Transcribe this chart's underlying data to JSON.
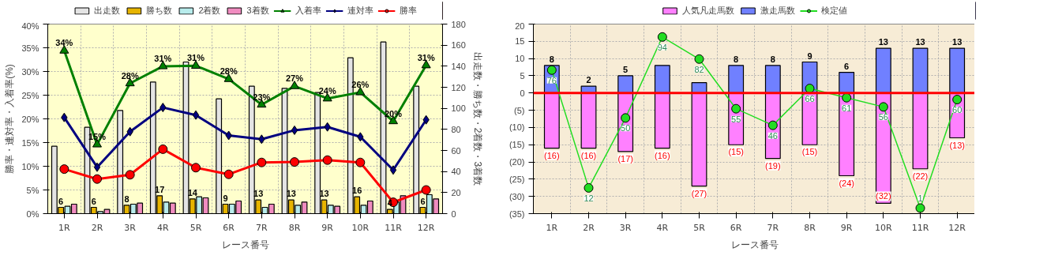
{
  "chart_data": [
    {
      "type": "bar",
      "categories": [
        "1R",
        "2R",
        "3R",
        "4R",
        "5R",
        "6R",
        "7R",
        "8R",
        "9R",
        "10R",
        "11R",
        "12R"
      ],
      "xlabel": "レース番号",
      "ylabel": "勝率・連対率・入着率(%)",
      "y2label": "出走数・勝ち数・2着数・3着数",
      "ylim": [
        0,
        40
      ],
      "yticks": [
        {
          "value": 0,
          "label": "0%"
        },
        {
          "value": 5,
          "label": "5%"
        },
        {
          "value": 10,
          "label": "10%"
        },
        {
          "value": 15,
          "label": "15%"
        },
        {
          "value": 20,
          "label": "20%"
        },
        {
          "value": 25,
          "label": "25%"
        },
        {
          "value": 30,
          "label": "30%"
        },
        {
          "value": 35,
          "label": "35%"
        },
        {
          "value": 40,
          "label": "40%"
        }
      ],
      "y2lim": [
        0,
        180
      ],
      "y2ticks": [
        0,
        20,
        40,
        60,
        80,
        100,
        120,
        140,
        160,
        180
      ],
      "grid": true,
      "legend": "top",
      "series": [
        {
          "name": "出走数",
          "type": "bar",
          "axis": "y2",
          "color": "#e4e4e4",
          "values": [
            64,
            82,
            98,
            125,
            144,
            109,
            121,
            119,
            115,
            148,
            163,
            121
          ]
        },
        {
          "name": "勝ち数",
          "type": "bar",
          "axis": "y2",
          "color": "#e6b400",
          "data_labels": true,
          "values": [
            6,
            6,
            8,
            17,
            14,
            9,
            13,
            13,
            13,
            16,
            4,
            6
          ]
        },
        {
          "name": "2着数",
          "type": "bar",
          "axis": "y2",
          "color": "#b8ecec",
          "values": [
            7,
            2,
            9,
            11,
            16,
            9,
            6,
            8,
            8,
            8,
            11,
            18
          ]
        },
        {
          "name": "3着数",
          "type": "bar",
          "axis": "y2",
          "color": "#f08cc0",
          "values": [
            9,
            4,
            10,
            10,
            15,
            12,
            9,
            11,
            7,
            12,
            17,
            14
          ]
        },
        {
          "name": "入着率",
          "type": "line",
          "axis": "y",
          "color": "#008000",
          "marker": "triangle",
          "values": [
            34.4,
            14.6,
            27.5,
            31.1,
            31.2,
            28.4,
            23.0,
            26.9,
            24.3,
            25.6,
            19.5,
            31.3
          ],
          "value_labels": [
            "34%",
            "15%",
            "28%",
            "31%",
            "31%",
            "28%",
            "23%",
            "27%",
            "24%",
            "26%",
            "20%",
            "31%"
          ]
        },
        {
          "name": "連対率",
          "type": "line",
          "axis": "y",
          "color": "#000080",
          "marker": "diamond",
          "values": [
            20.3,
            9.8,
            17.3,
            22.4,
            20.8,
            16.5,
            15.7,
            17.6,
            18.3,
            16.2,
            9.2,
            19.8
          ]
        },
        {
          "name": "勝率",
          "type": "line",
          "axis": "y",
          "color": "#ff0000",
          "marker": "circle",
          "values": [
            9.4,
            7.3,
            8.2,
            13.6,
            9.7,
            8.3,
            10.8,
            10.9,
            11.3,
            10.8,
            2.4,
            5.0
          ]
        }
      ]
    },
    {
      "type": "bar",
      "categories": [
        "1R",
        "2R",
        "3R",
        "4R",
        "5R",
        "6R",
        "7R",
        "8R",
        "9R",
        "10R",
        "11R",
        "12R"
      ],
      "xlabel": "レース番号",
      "stacked": true,
      "ylim": [
        -35,
        20
      ],
      "yticks": [
        20,
        15,
        10,
        5,
        0,
        {
          "value": -5,
          "label": "(5)"
        },
        {
          "value": -10,
          "label": "(10)"
        },
        {
          "value": -15,
          "label": "(15)"
        },
        {
          "value": -20,
          "label": "(20)"
        },
        {
          "value": -25,
          "label": "(25)"
        },
        {
          "value": -30,
          "label": "(30)"
        },
        {
          "value": -35,
          "label": "(35)"
        }
      ],
      "y2lim": [
        -2,
        101
      ],
      "tick_labels": "xy",
      "grid": true,
      "legend": "top",
      "ref_lines": [
        {
          "axis": "y",
          "value": 0,
          "color": "#ff0000"
        }
      ],
      "series": [
        {
          "name": "人気凡走馬数",
          "type": "bar",
          "axis": "y",
          "color": "#ff80ff",
          "values": [
            -16,
            -16,
            -17,
            -16,
            -27,
            -15,
            -19,
            -15,
            -24,
            -32,
            -22,
            -13
          ],
          "value_labels": [
            "(16)",
            "(16)",
            "(17)",
            "(16)",
            "(27)",
            "(15)",
            "(19)",
            "(15)",
            "(24)",
            "(32)",
            "(22)",
            "(13)"
          ]
        },
        {
          "name": "激走馬数",
          "type": "bar",
          "axis": "y",
          "color": "#7080ff",
          "values": [
            8,
            2,
            5,
            8,
            3,
            8,
            8,
            9,
            6,
            13,
            13,
            13
          ],
          "value_labels": [
            "8",
            "2",
            "5",
            null,
            null,
            "8",
            "8",
            "9",
            "6",
            "13",
            "13",
            "13"
          ]
        },
        {
          "name": "検定値",
          "type": "line",
          "axis": "y2",
          "color": "#22dd22",
          "marker": "circle",
          "data_labels": true,
          "values": [
            76,
            12,
            50,
            94,
            82,
            55,
            46,
            66,
            61,
            56,
            1,
            60
          ]
        }
      ]
    }
  ]
}
